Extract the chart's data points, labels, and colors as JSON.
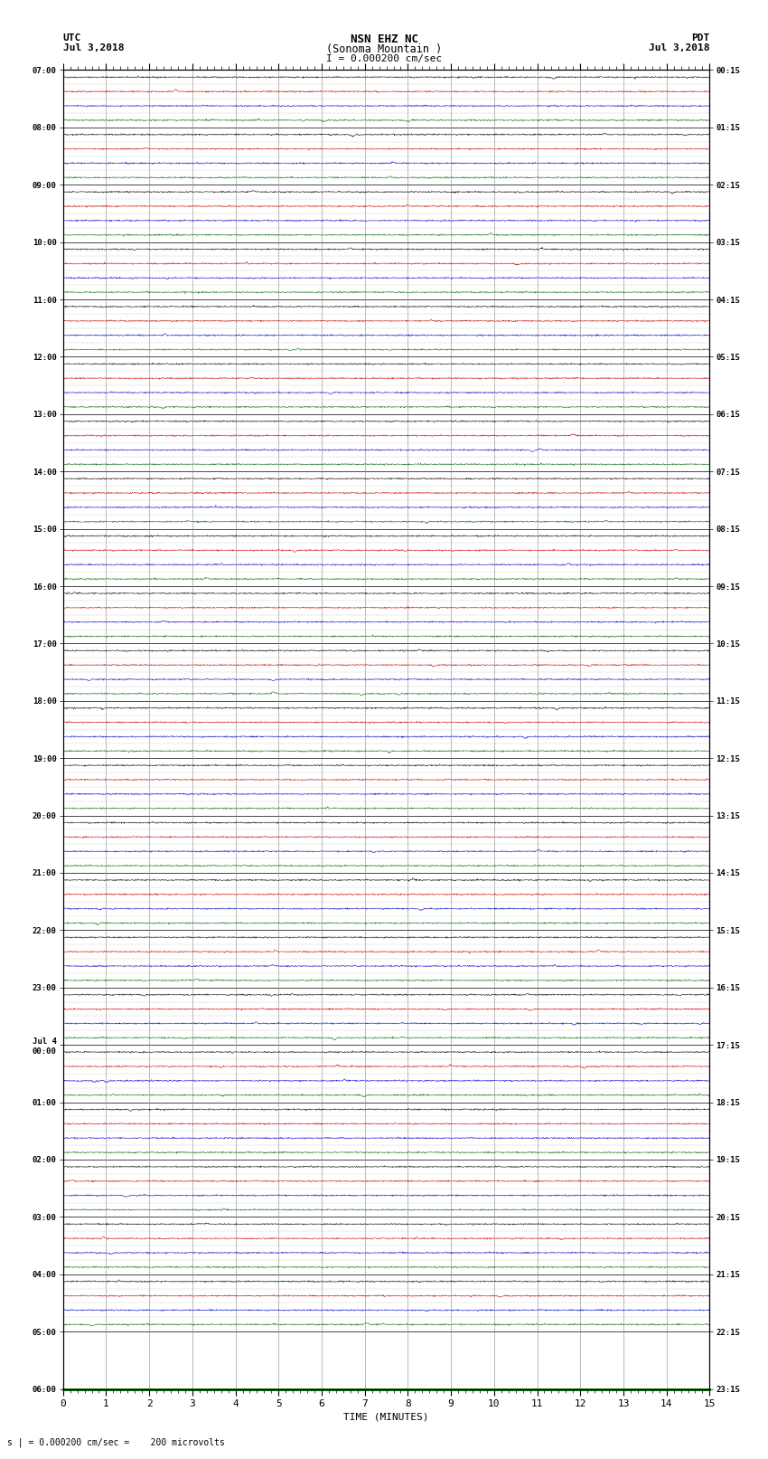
{
  "title_line1": "NSN EHZ NC",
  "title_line2": "(Sonoma Mountain )",
  "title_scale": "I = 0.000200 cm/sec",
  "left_header_1": "UTC",
  "left_header_2": "Jul 3,2018",
  "right_header_1": "PDT",
  "right_header_2": "Jul 3,2018",
  "xlabel": "TIME (MINUTES)",
  "footer": "s | = 0.000200 cm/sec =    200 microvolts",
  "x_ticks": [
    0,
    1,
    2,
    3,
    4,
    5,
    6,
    7,
    8,
    9,
    10,
    11,
    12,
    13,
    14,
    15
  ],
  "utc_labels": [
    "07:00",
    "",
    "",
    "",
    "08:00",
    "",
    "",
    "",
    "09:00",
    "",
    "",
    "",
    "10:00",
    "",
    "",
    "",
    "11:00",
    "",
    "",
    "",
    "12:00",
    "",
    "",
    "",
    "13:00",
    "",
    "",
    "",
    "14:00",
    "",
    "",
    "",
    "15:00",
    "",
    "",
    "",
    "16:00",
    "",
    "",
    "",
    "17:00",
    "",
    "",
    "",
    "18:00",
    "",
    "",
    "",
    "19:00",
    "",
    "",
    "",
    "20:00",
    "",
    "",
    "",
    "21:00",
    "",
    "",
    "",
    "22:00",
    "",
    "",
    "",
    "23:00",
    "",
    "",
    "",
    "Jul 4\n00:00",
    "",
    "",
    "",
    "01:00",
    "",
    "",
    "",
    "02:00",
    "",
    "",
    "",
    "03:00",
    "",
    "",
    "",
    "04:00",
    "",
    "",
    "",
    "05:00",
    "",
    "",
    "",
    "06:00",
    "",
    "",
    ""
  ],
  "pdt_labels": [
    "00:15",
    "",
    "",
    "",
    "01:15",
    "",
    "",
    "",
    "02:15",
    "",
    "",
    "",
    "03:15",
    "",
    "",
    "",
    "04:15",
    "",
    "",
    "",
    "05:15",
    "",
    "",
    "",
    "06:15",
    "",
    "",
    "",
    "07:15",
    "",
    "",
    "",
    "08:15",
    "",
    "",
    "",
    "09:15",
    "",
    "",
    "",
    "10:15",
    "",
    "",
    "",
    "11:15",
    "",
    "",
    "",
    "12:15",
    "",
    "",
    "",
    "13:15",
    "",
    "",
    "",
    "14:15",
    "",
    "",
    "",
    "15:15",
    "",
    "",
    "",
    "16:15",
    "",
    "",
    "",
    "17:15",
    "",
    "",
    "",
    "18:15",
    "",
    "",
    "",
    "19:15",
    "",
    "",
    "",
    "20:15",
    "",
    "",
    "",
    "21:15",
    "",
    "",
    "",
    "22:15",
    "",
    "",
    "",
    "23:15",
    "",
    "",
    ""
  ],
  "n_rows": 88,
  "colors_cycle": [
    "#000000",
    "#cc0000",
    "#0000cc",
    "#006600"
  ],
  "bg_color": "#ffffff",
  "grid_color": "#888888",
  "sep_line_color": "#000000",
  "trace_noise": 0.025,
  "trace_amplitude": 0.12,
  "seed": 42,
  "n_pts": 1800
}
